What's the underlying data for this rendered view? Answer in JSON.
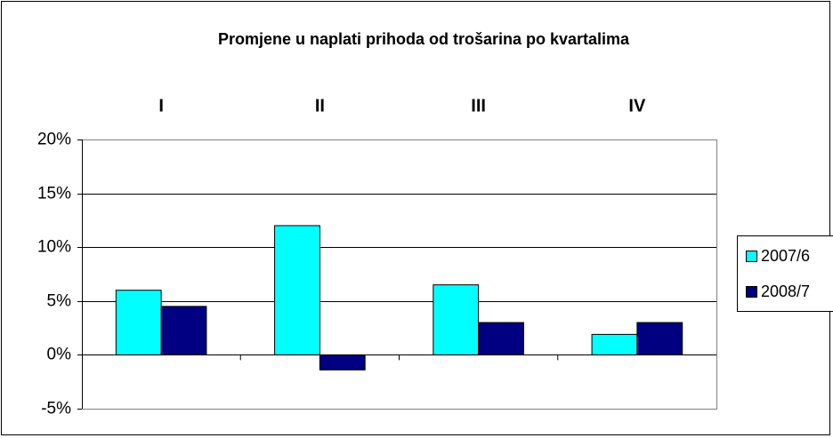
{
  "chart_data": {
    "type": "bar",
    "title": "Promjene u naplati prihoda od trošarina po kvartalima",
    "categories": [
      "I",
      "II",
      "III",
      "IV"
    ],
    "series": [
      {
        "name": "2007/6",
        "color": "#00ffff",
        "values": [
          6,
          12,
          6.5,
          1.9
        ]
      },
      {
        "name": "2008/7",
        "color": "#000080",
        "values": [
          4.5,
          -1.4,
          3,
          3
        ]
      }
    ],
    "ylim": [
      -5,
      20
    ],
    "yticks": [
      {
        "value": -5,
        "label": "-5%"
      },
      {
        "value": 0,
        "label": "0%"
      },
      {
        "value": 5,
        "label": "5%"
      },
      {
        "value": 10,
        "label": "10%"
      },
      {
        "value": 15,
        "label": "15%"
      },
      {
        "value": 20,
        "label": "20%"
      }
    ],
    "grid": true,
    "legend": "right"
  }
}
